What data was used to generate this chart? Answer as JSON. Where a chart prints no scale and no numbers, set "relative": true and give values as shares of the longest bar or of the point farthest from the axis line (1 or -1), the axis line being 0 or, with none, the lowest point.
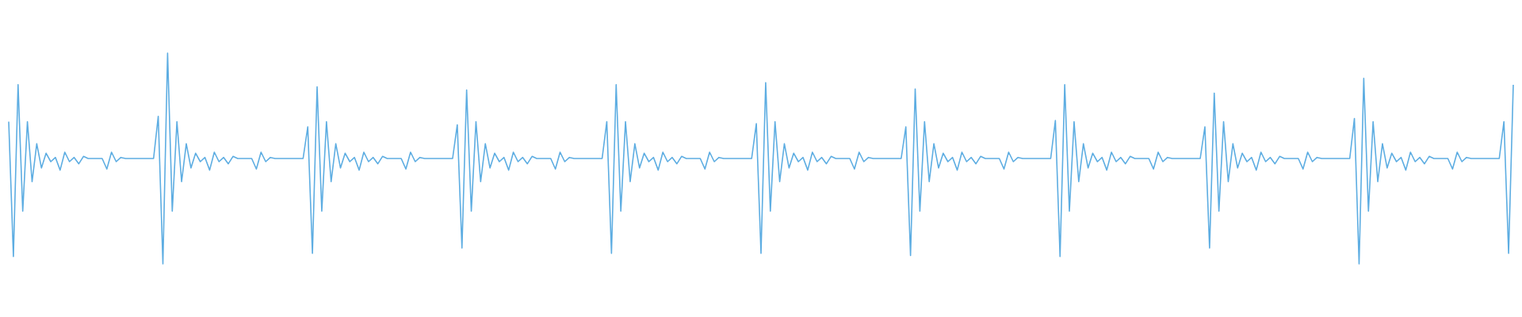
{
  "chart_data": {
    "type": "line",
    "relative": true,
    "categories": [
      null,
      null,
      null,
      null,
      null,
      null,
      null,
      null,
      null,
      null,
      null,
      null,
      null,
      null,
      null,
      null,
      null,
      null,
      null,
      null,
      null,
      null,
      null,
      null,
      null,
      null,
      null,
      null,
      null,
      null,
      null,
      null,
      null,
      null,
      null,
      null,
      null,
      null,
      null,
      null,
      null,
      null,
      null,
      null,
      null,
      null,
      null,
      null,
      null,
      null,
      null,
      null,
      null,
      null,
      null,
      null,
      null,
      null,
      null,
      null,
      null,
      null,
      null,
      null,
      null,
      null,
      null,
      null,
      null,
      null,
      null,
      null,
      null,
      null,
      null,
      null,
      null,
      null,
      null,
      null,
      null,
      null,
      null,
      null,
      null,
      null,
      null,
      null,
      null,
      null,
      null,
      null,
      null,
      null,
      null,
      null,
      null,
      null,
      null,
      null,
      null,
      null,
      null,
      null,
      null,
      null,
      null,
      null,
      null,
      null,
      null,
      null,
      null,
      null,
      null,
      null,
      null,
      null,
      null,
      null,
      null,
      null,
      null,
      null,
      null,
      null,
      null,
      null,
      null,
      null,
      null,
      null,
      null,
      null,
      null,
      null,
      null,
      null,
      null,
      null,
      null,
      null,
      null,
      null,
      null,
      null,
      null,
      null,
      null,
      null,
      null,
      null,
      null,
      null,
      null,
      null,
      null,
      null,
      null,
      null,
      null,
      null,
      null,
      null,
      null,
      null,
      null,
      null,
      null,
      null,
      null,
      null,
      null,
      null,
      null,
      null,
      null,
      null,
      null,
      null,
      null,
      null,
      null,
      null,
      null,
      null,
      null,
      null,
      null,
      null,
      null,
      null,
      null,
      null,
      null,
      null,
      null,
      null,
      null,
      null,
      null,
      null,
      null,
      null,
      null,
      null,
      null,
      null,
      null,
      null,
      null,
      null,
      null,
      null,
      null,
      null,
      null,
      null,
      null,
      null,
      null,
      null,
      null,
      null,
      null,
      null,
      null,
      null,
      null,
      null,
      null,
      null,
      null,
      null,
      null,
      null,
      null,
      null,
      null,
      null,
      null,
      null,
      null,
      null,
      null,
      null,
      null,
      null,
      null,
      null,
      null,
      null,
      null,
      null,
      null,
      null,
      null,
      null,
      null,
      null,
      null,
      null,
      null,
      null,
      null,
      null,
      null,
      null,
      null,
      null,
      null,
      null,
      null,
      null,
      null,
      null,
      null,
      null,
      null,
      null,
      null,
      null,
      null,
      null,
      null,
      null,
      null,
      null,
      null,
      null,
      null,
      null,
      null,
      null,
      null,
      null,
      null,
      null,
      null,
      null,
      null,
      null,
      null,
      null,
      null,
      null,
      null,
      null,
      null,
      null,
      null,
      null,
      null,
      null,
      null,
      null,
      null,
      null,
      null,
      null,
      null,
      null,
      null
    ],
    "series": [
      {
        "color": "#5dade2",
        "values": [
          0.675,
          0.035,
          0.85,
          0.25,
          0.675,
          0.39,
          0.57,
          0.455,
          0.525,
          0.485,
          0.505,
          0.445,
          0.53,
          0.485,
          0.505,
          0.475,
          0.51,
          0.5,
          0.5,
          0.5,
          0.5,
          0.45,
          0.53,
          0.485,
          0.505,
          0.5,
          0.5,
          0.5,
          0.5,
          0.5,
          0.5,
          0.5,
          0.7,
          0,
          1,
          0.25,
          0.675,
          0.39,
          0.57,
          0.455,
          0.525,
          0.485,
          0.505,
          0.445,
          0.53,
          0.485,
          0.505,
          0.475,
          0.51,
          0.5,
          0.5,
          0.5,
          0.5,
          0.45,
          0.53,
          0.485,
          0.505,
          0.5,
          0.5,
          0.5,
          0.5,
          0.5,
          0.5,
          0.5,
          0.65,
          0.05,
          0.84,
          0.25,
          0.675,
          0.39,
          0.57,
          0.455,
          0.525,
          0.485,
          0.505,
          0.445,
          0.53,
          0.485,
          0.505,
          0.475,
          0.51,
          0.5,
          0.5,
          0.5,
          0.5,
          0.45,
          0.53,
          0.485,
          0.505,
          0.5,
          0.5,
          0.5,
          0.5,
          0.5,
          0.5,
          0.5,
          0.66,
          0.075,
          0.825,
          0.25,
          0.675,
          0.39,
          0.57,
          0.455,
          0.525,
          0.485,
          0.505,
          0.445,
          0.53,
          0.485,
          0.505,
          0.475,
          0.51,
          0.5,
          0.5,
          0.5,
          0.5,
          0.45,
          0.53,
          0.485,
          0.505,
          0.5,
          0.5,
          0.5,
          0.5,
          0.5,
          0.5,
          0.5,
          0.675,
          0.05,
          0.85,
          0.25,
          0.675,
          0.39,
          0.57,
          0.455,
          0.525,
          0.485,
          0.505,
          0.445,
          0.53,
          0.485,
          0.505,
          0.475,
          0.51,
          0.5,
          0.5,
          0.5,
          0.5,
          0.45,
          0.53,
          0.485,
          0.505,
          0.5,
          0.5,
          0.5,
          0.5,
          0.5,
          0.5,
          0.5,
          0.665,
          0.05,
          0.86,
          0.25,
          0.675,
          0.39,
          0.57,
          0.455,
          0.525,
          0.485,
          0.505,
          0.445,
          0.53,
          0.485,
          0.505,
          0.475,
          0.51,
          0.5,
          0.5,
          0.5,
          0.5,
          0.45,
          0.53,
          0.485,
          0.505,
          0.5,
          0.5,
          0.5,
          0.5,
          0.5,
          0.5,
          0.5,
          0.65,
          0.04,
          0.83,
          0.25,
          0.675,
          0.39,
          0.57,
          0.455,
          0.525,
          0.485,
          0.505,
          0.445,
          0.53,
          0.485,
          0.505,
          0.475,
          0.51,
          0.5,
          0.5,
          0.5,
          0.5,
          0.45,
          0.53,
          0.485,
          0.505,
          0.5,
          0.5,
          0.5,
          0.5,
          0.5,
          0.5,
          0.5,
          0.68,
          0.035,
          0.85,
          0.25,
          0.675,
          0.39,
          0.57,
          0.455,
          0.525,
          0.485,
          0.505,
          0.445,
          0.53,
          0.485,
          0.505,
          0.475,
          0.51,
          0.5,
          0.5,
          0.5,
          0.5,
          0.45,
          0.53,
          0.485,
          0.505,
          0.5,
          0.5,
          0.5,
          0.5,
          0.5,
          0.5,
          0.5,
          0.65,
          0.075,
          0.81,
          0.25,
          0.675,
          0.39,
          0.57,
          0.455,
          0.525,
          0.485,
          0.505,
          0.445,
          0.53,
          0.485,
          0.505,
          0.475,
          0.51,
          0.5,
          0.5,
          0.5,
          0.5,
          0.45,
          0.53,
          0.485,
          0.505,
          0.5,
          0.5,
          0.5,
          0.5,
          0.5,
          0.5,
          0.5,
          0.69,
          0,
          0.88,
          0.25,
          0.675,
          0.39,
          0.57,
          0.455,
          0.525,
          0.485,
          0.505,
          0.445,
          0.53,
          0.485,
          0.505,
          0.475,
          0.51,
          0.5,
          0.5,
          0.5,
          0.5,
          0.45,
          0.53,
          0.485,
          0.505,
          0.5,
          0.5,
          0.5,
          0.5,
          0.5,
          0.5,
          0.5,
          0.675,
          0.05,
          0.85
        ]
      }
    ]
  }
}
